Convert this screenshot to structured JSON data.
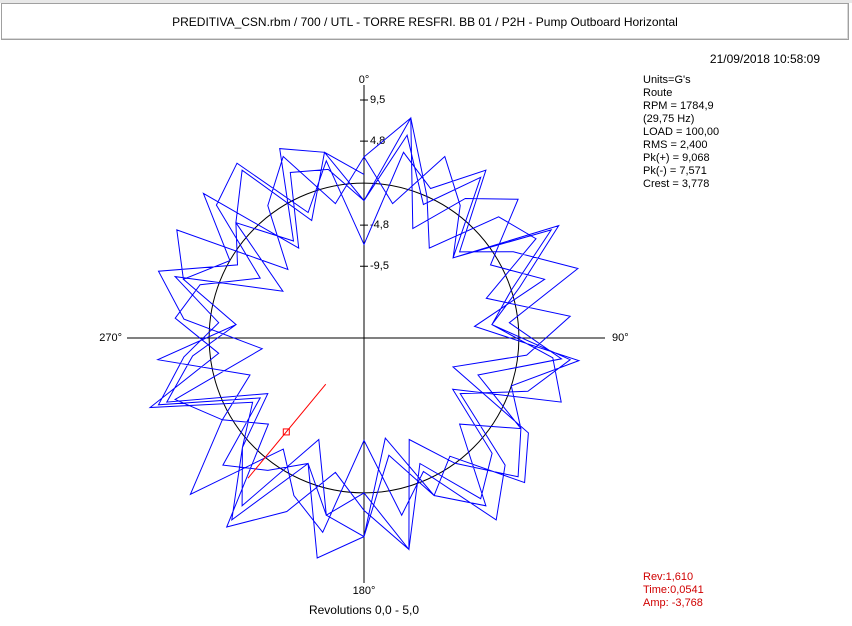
{
  "window_title": "PREDITIVA_CSN.rbm / 700 / UTL - TORRE RESFRI. BB 01 / P2H - Pump Outboard Horizontal",
  "timestamp": "21/09/2018 10:58:09",
  "info": [
    "Units=G's",
    "Route",
    "RPM = 1784,9",
    "(29,75 Hz)",
    "LOAD = 100,00",
    "RMS = 2,400",
    "Pk(+) = 9,068",
    "Pk(-) = 7,571",
    "Crest = 3,778"
  ],
  "cursor": {
    "rev": {
      "value": 1.61,
      "label": "Rev:1,610"
    },
    "time": "Time:0,0541",
    "amp": {
      "value": -3.768,
      "label": "Amp: -3,768"
    }
  },
  "chart_data": {
    "type": "polar",
    "xlabel": "Revolutions 0,0 - 5,0",
    "xlim": [
      0,
      5
    ],
    "angle_labels": [
      "0°",
      "90°",
      "180°",
      "270°"
    ],
    "rlim": [
      -17.7,
      9.5
    ],
    "rticks": [
      {
        "value": 9.5,
        "label": "9,5"
      },
      {
        "value": 4.8,
        "label": "4,8"
      },
      {
        "value": -4.8,
        "label": "-4,8"
      },
      {
        "value": -9.5,
        "label": "-9,5"
      }
    ],
    "color": "#0000ff",
    "values": [
      3,
      -2,
      5,
      1,
      -4,
      7,
      0,
      -3,
      6,
      2,
      -5,
      4,
      8,
      -1,
      3,
      -6,
      5,
      2,
      -2,
      9,
      1,
      -4,
      6,
      -3,
      4,
      0,
      7,
      -5,
      3,
      2,
      -2,
      6,
      -1,
      5,
      -4,
      8,
      1,
      -3,
      4,
      6,
      -6,
      2,
      5,
      -2,
      7,
      0,
      3,
      -5,
      6,
      1,
      -3,
      8,
      -1,
      4,
      2,
      -4,
      5,
      7,
      -2,
      3,
      -7,
      4,
      1,
      6,
      -3,
      2,
      8,
      -1,
      5,
      -4,
      3,
      6,
      0,
      -5,
      7,
      2,
      -2,
      4,
      9,
      -3,
      1,
      5,
      -6,
      3,
      7,
      -1,
      2,
      -4,
      6,
      4,
      -2,
      8,
      0,
      -5,
      3,
      5,
      -3,
      6,
      1,
      -7,
      4,
      7,
      -1,
      2,
      -4,
      5,
      3,
      -2,
      8,
      1,
      -5,
      6,
      2,
      -3,
      4,
      7,
      -6,
      1,
      5,
      -2,
      3,
      8,
      -4,
      2,
      6,
      -1,
      4,
      -5,
      7,
      0,
      3,
      -3,
      6,
      2,
      -6,
      5,
      8,
      -2,
      1,
      4,
      -4,
      7,
      3,
      -1,
      5,
      -7,
      2,
      6,
      -3,
      4,
      1
    ]
  }
}
